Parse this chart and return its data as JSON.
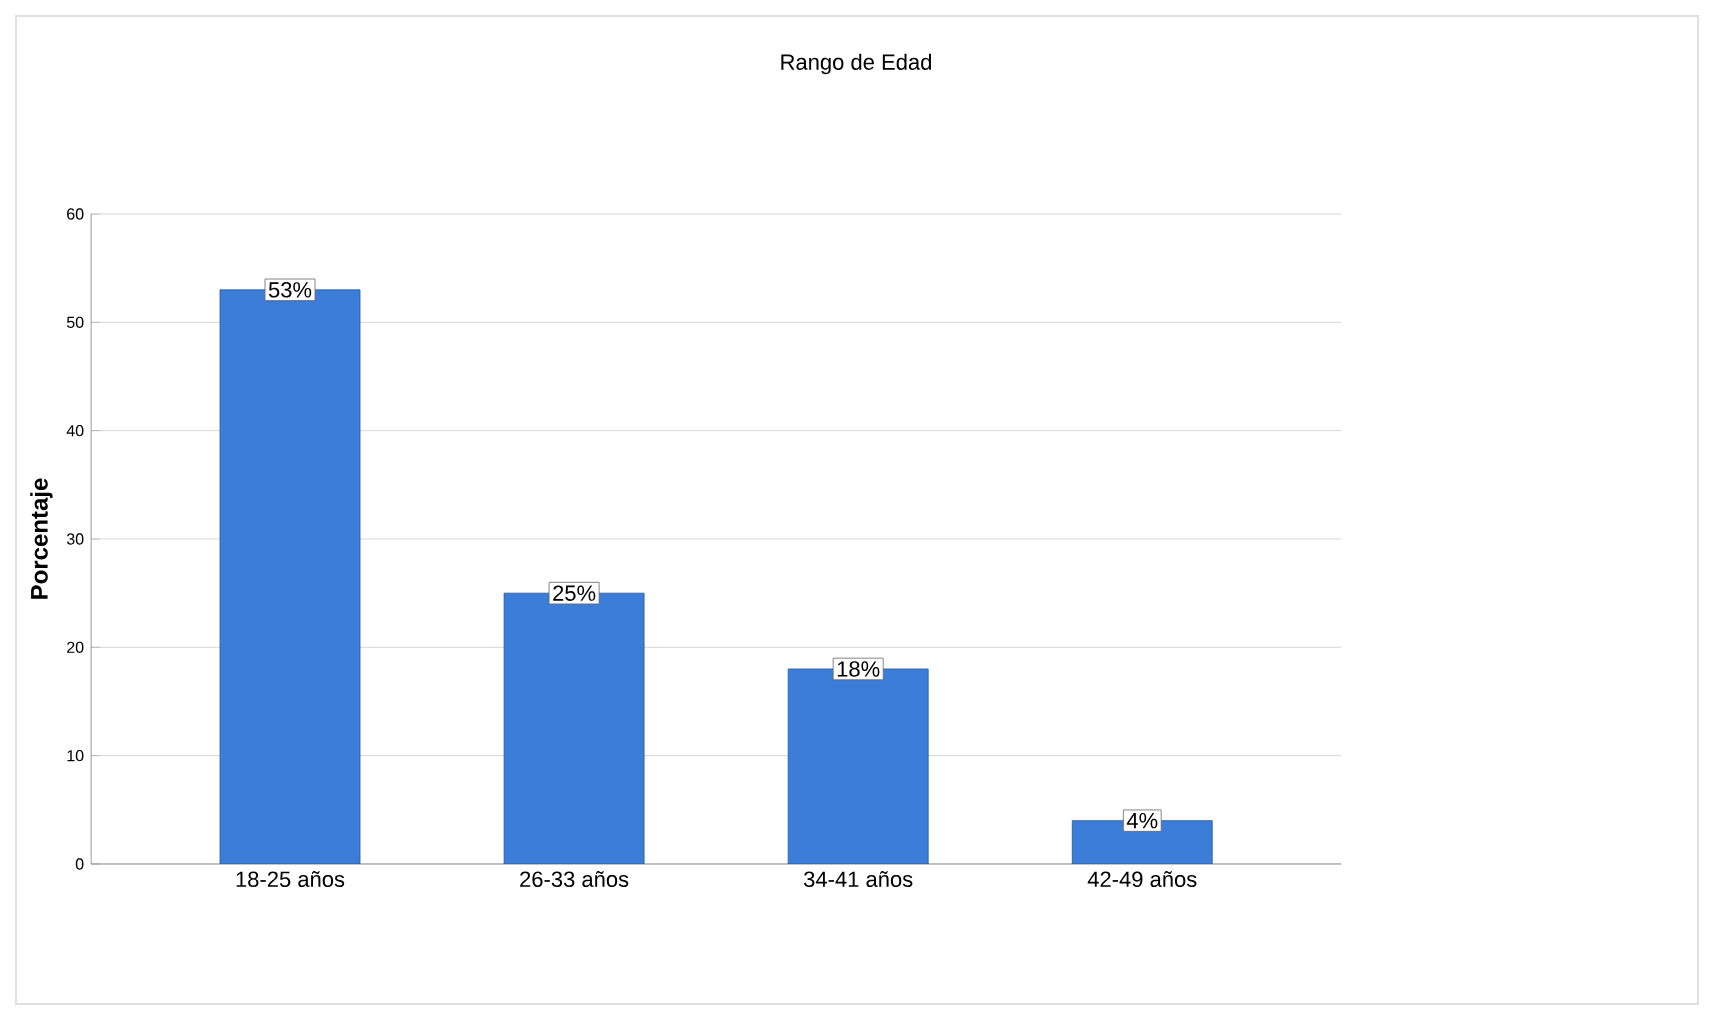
{
  "chart_data": {
    "type": "bar",
    "title": "Rango de Edad",
    "ylabel": "Porcentaje",
    "categories": [
      "18-25 años",
      "26-33 años",
      "34-41 años",
      "42-49 años"
    ],
    "values": [
      53,
      25,
      18,
      4
    ],
    "value_labels": [
      "53%",
      "25%",
      "18%",
      "4%"
    ],
    "color": "#3b7dd8",
    "ylim": [
      0,
      60
    ],
    "yticks": [
      0,
      10,
      20,
      30,
      40,
      50,
      60
    ],
    "grid": "y"
  }
}
